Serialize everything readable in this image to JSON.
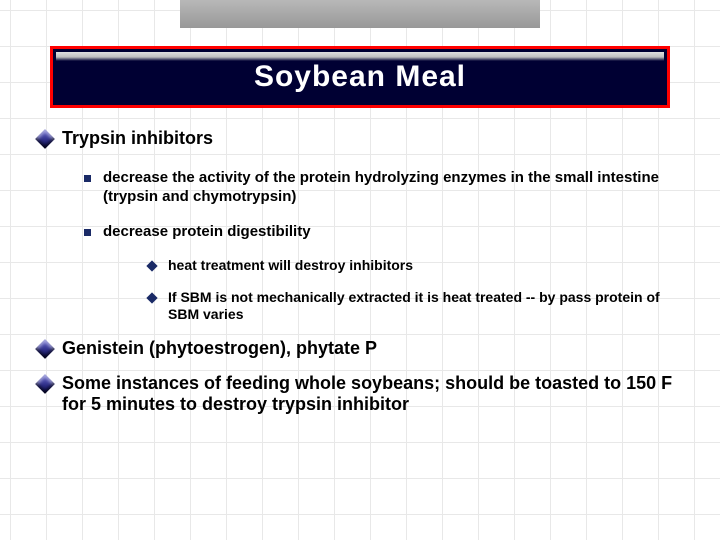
{
  "colors": {
    "title_border": "#ff0000",
    "title_bg": "#000033",
    "title_text": "#ffffff",
    "bullet_primary": "#1a2a66",
    "grid_line": "#e8e8e8",
    "top_bar_top": "#b8b8b8",
    "top_bar_bottom": "#989898",
    "text": "#000000"
  },
  "title": "Soybean Meal",
  "items": [
    {
      "level": 1,
      "text": "Trypsin inhibitors",
      "children": [
        {
          "level": 2,
          "text": "decrease the activity of the protein hydrolyzing enzymes in the small intestine (trypsin and chymotrypsin)"
        },
        {
          "level": 2,
          "text": "decrease protein digestibility",
          "children": [
            {
              "level": 3,
              "text": "heat treatment will destroy inhibitors"
            },
            {
              "level": 3,
              "text": "If SBM is not mechanically extracted it is heat treated -- by pass protein of SBM varies"
            }
          ]
        }
      ]
    },
    {
      "level": 1,
      "text": "Genistein (phytoestrogen), phytate P"
    },
    {
      "level": 1,
      "text": "Some instances of feeding whole soybeans; should be toasted to 150 F for 5 minutes to destroy trypsin inhibitor"
    }
  ]
}
